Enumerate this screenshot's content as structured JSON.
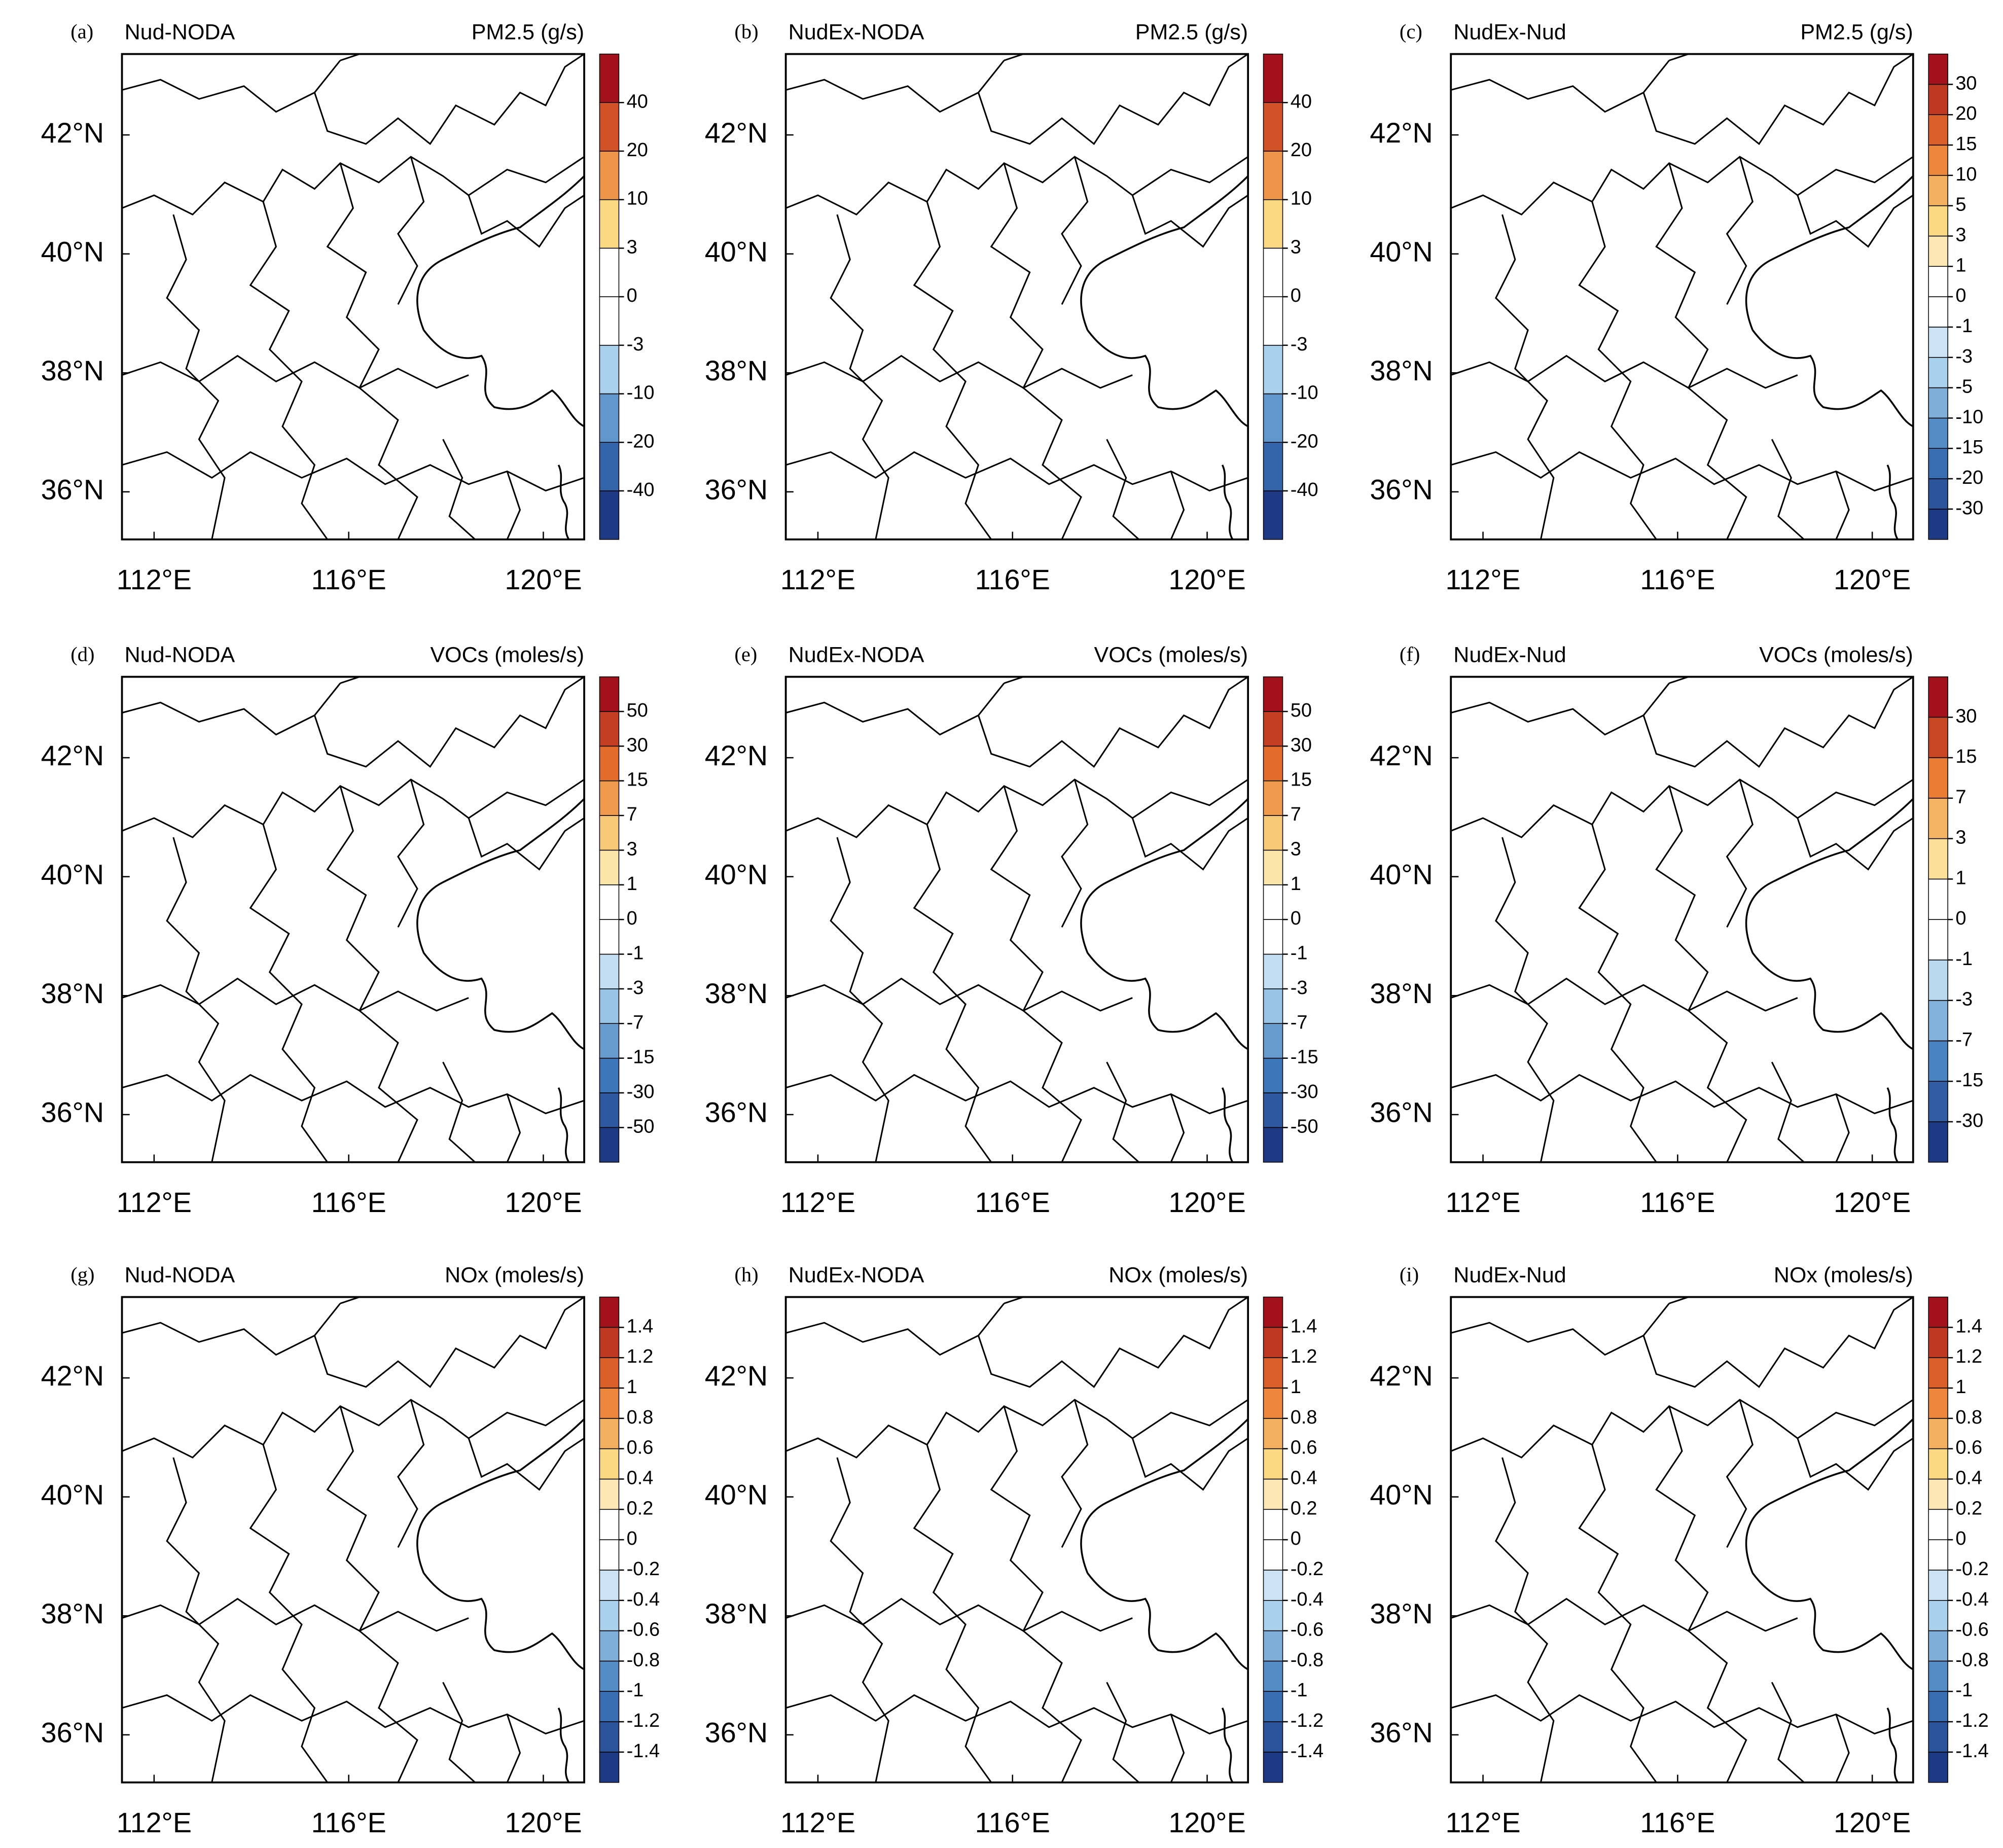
{
  "map": {
    "lonlim": [
      111.34,
      120.84
    ],
    "latlim": [
      35.2,
      43.36
    ],
    "lat_ticks": [
      {
        "value": 36,
        "label": "36°N"
      },
      {
        "value": 38,
        "label": "38°N"
      },
      {
        "value": 40,
        "label": "40°N"
      },
      {
        "value": 42,
        "label": "42°N"
      }
    ],
    "lon_ticks": [
      {
        "value": 112,
        "label": "112°E"
      },
      {
        "value": 116,
        "label": "116°E"
      },
      {
        "value": 120,
        "label": "120°E"
      }
    ],
    "colormap": [
      "#1f3a85",
      "#3f7bbd",
      "#a9d0ec",
      "#ffffff",
      "#fbd983",
      "#e8732c",
      "#a3111c"
    ]
  },
  "panels": [
    {
      "label": "(a)",
      "left_title": "Nud-NODA",
      "right_title": "PM2.5 (g/s)",
      "colorbar_levels": [
        -40,
        -20,
        -10,
        -3,
        0,
        3,
        10,
        20,
        40
      ]
    },
    {
      "label": "(b)",
      "left_title": "NudEx-NODA",
      "right_title": "PM2.5 (g/s)",
      "colorbar_levels": [
        -40,
        -20,
        -10,
        -3,
        0,
        3,
        10,
        20,
        40
      ]
    },
    {
      "label": "(c)",
      "left_title": "NudEx-Nud",
      "right_title": "PM2.5 (g/s)",
      "colorbar_levels": [
        -30,
        -20,
        -15,
        -10,
        -5,
        -3,
        -1,
        0,
        1,
        3,
        5,
        10,
        15,
        20,
        30
      ]
    },
    {
      "label": "(d)",
      "left_title": "Nud-NODA",
      "right_title": "VOCs (moles/s)",
      "colorbar_levels": [
        -50,
        -30,
        -15,
        -7,
        -3,
        -1,
        0,
        1,
        3,
        7,
        15,
        30,
        50
      ]
    },
    {
      "label": "(e)",
      "left_title": "NudEx-NODA",
      "right_title": "VOCs (moles/s)",
      "colorbar_levels": [
        -50,
        -30,
        -15,
        -7,
        -3,
        -1,
        0,
        1,
        3,
        7,
        15,
        30,
        50
      ]
    },
    {
      "label": "(f)",
      "left_title": "NudEx-Nud",
      "right_title": "VOCs (moles/s)",
      "colorbar_levels": [
        -30,
        -15,
        -7,
        -3,
        -1,
        0,
        1,
        3,
        7,
        15,
        30
      ]
    },
    {
      "label": "(g)",
      "left_title": "Nud-NODA",
      "right_title": "NOx (moles/s)",
      "colorbar_levels": [
        -1.4,
        -1.2,
        -1,
        -0.8,
        -0.6,
        -0.4,
        -0.2,
        0,
        0.2,
        0.4,
        0.6,
        0.8,
        1,
        1.2,
        1.4
      ]
    },
    {
      "label": "(h)",
      "left_title": "NudEx-NODA",
      "right_title": "NOx (moles/s)",
      "colorbar_levels": [
        -1.4,
        -1.2,
        -1,
        -0.8,
        -0.6,
        -0.4,
        -0.2,
        0,
        0.2,
        0.4,
        0.6,
        0.8,
        1,
        1.2,
        1.4
      ]
    },
    {
      "label": "(i)",
      "left_title": "NudEx-Nud",
      "right_title": "NOx (moles/s)",
      "colorbar_levels": [
        -1.4,
        -1.2,
        -1,
        -0.8,
        -0.6,
        -0.4,
        -0.2,
        0,
        0.2,
        0.4,
        0.6,
        0.8,
        1,
        1.2,
        1.4
      ]
    }
  ]
}
